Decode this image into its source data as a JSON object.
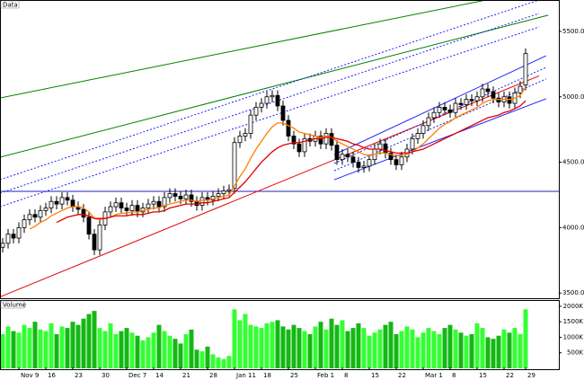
{
  "chart_data": {
    "type": "candlestick",
    "panel_label": "Data",
    "volume_label": "Volume",
    "categories": [
      null,
      null,
      null,
      "Nov 9",
      null,
      null,
      null,
      null,
      "16",
      null,
      null,
      null,
      null,
      "23",
      null,
      null,
      null,
      null,
      "30",
      null,
      null,
      null,
      null,
      "Dec 7",
      null,
      null,
      null,
      null,
      "14",
      null,
      null,
      null,
      null,
      "21",
      null,
      null,
      null,
      null,
      "28",
      null,
      null,
      null,
      null,
      "Jan 11",
      null,
      null,
      null,
      null,
      "18",
      null,
      null,
      null,
      null,
      "25",
      null,
      null,
      null,
      null,
      "Feb 1",
      null,
      null,
      null,
      null,
      "8",
      null,
      null,
      null,
      null,
      "15",
      null,
      null,
      null,
      null,
      "22",
      null,
      null,
      null,
      null,
      "Mar 1",
      null,
      null,
      null,
      null,
      "8",
      null,
      null,
      null,
      null,
      "15",
      null,
      null,
      null,
      null,
      "22",
      null,
      null,
      null,
      "29"
    ],
    "open": [
      3850,
      3880,
      3950,
      3920,
      4000,
      4060,
      4100,
      4080,
      4130,
      4150,
      4200,
      4180,
      4230,
      4210,
      4160,
      4140,
      4080,
      3950,
      3830,
      4020,
      4120,
      4160,
      4190,
      4150,
      4130,
      4170,
      4120,
      4150,
      4180,
      4200,
      4160,
      4230,
      4260,
      4240,
      4220,
      4250,
      4200,
      4170,
      4230,
      4210,
      4240,
      4260,
      4280,
      4300,
      4650,
      4700,
      4720,
      4860,
      4920,
      4950,
      5000,
      5010,
      4930,
      4820,
      4700,
      4640,
      4580,
      4680,
      4660,
      4700,
      4640,
      4720,
      4630,
      4520,
      4560,
      4540,
      4500,
      4460,
      4470,
      4520,
      4600,
      4640,
      4570,
      4520,
      4480,
      4540,
      4600,
      4680,
      4720,
      4780,
      4840,
      4880,
      4920,
      4900,
      4880,
      4950,
      4940,
      4980,
      4970,
      5000,
      5060,
      5040,
      4990,
      4960,
      5000,
      4950,
      5030,
      5090
    ],
    "high": [
      3920,
      3990,
      3990,
      4040,
      4100,
      4140,
      4140,
      4170,
      4190,
      4240,
      4240,
      4270,
      4270,
      4250,
      4200,
      4180,
      4120,
      3990,
      4060,
      4160,
      4200,
      4230,
      4230,
      4190,
      4210,
      4210,
      4190,
      4220,
      4240,
      4240,
      4270,
      4300,
      4300,
      4280,
      4290,
      4290,
      4240,
      4270,
      4270,
      4280,
      4300,
      4320,
      4330,
      4690,
      4740,
      4760,
      4900,
      4960,
      4990,
      5040,
      5050,
      5050,
      4970,
      4860,
      4740,
      4680,
      4720,
      4720,
      4740,
      4740,
      4760,
      4760,
      4670,
      4600,
      4600,
      4580,
      4540,
      4510,
      4560,
      4640,
      4680,
      4680,
      4610,
      4560,
      4580,
      4640,
      4720,
      4760,
      4820,
      4880,
      4920,
      4960,
      4960,
      4940,
      4990,
      4990,
      5020,
      5020,
      5040,
      5100,
      5100,
      5080,
      5030,
      5040,
      5040,
      5070,
      5120,
      5370
    ],
    "low": [
      3810,
      3840,
      3880,
      3880,
      3960,
      4020,
      4040,
      4040,
      4090,
      4110,
      4140,
      4140,
      4170,
      4120,
      4100,
      4040,
      3910,
      3790,
      3790,
      3980,
      4080,
      4120,
      4110,
      4090,
      4090,
      4080,
      4080,
      4110,
      4140,
      4120,
      4120,
      4190,
      4200,
      4180,
      4180,
      4160,
      4130,
      4130,
      4170,
      4170,
      4200,
      4220,
      4240,
      4260,
      4610,
      4660,
      4680,
      4820,
      4880,
      4910,
      4960,
      4890,
      4780,
      4660,
      4600,
      4540,
      4540,
      4620,
      4620,
      4600,
      4600,
      4590,
      4480,
      4480,
      4500,
      4460,
      4420,
      4420,
      4430,
      4480,
      4560,
      4530,
      4480,
      4440,
      4440,
      4500,
      4560,
      4640,
      4680,
      4740,
      4800,
      4840,
      4860,
      4840,
      4840,
      4900,
      4900,
      4930,
      4930,
      4960,
      5000,
      4950,
      4920,
      4920,
      4910,
      4910,
      4990,
      5050
    ],
    "close": [
      3880,
      3950,
      3920,
      4000,
      4060,
      4100,
      4080,
      4130,
      4150,
      4200,
      4180,
      4230,
      4210,
      4160,
      4140,
      4080,
      3950,
      3830,
      4020,
      4120,
      4160,
      4190,
      4150,
      4130,
      4170,
      4120,
      4150,
      4180,
      4200,
      4160,
      4230,
      4260,
      4240,
      4220,
      4250,
      4200,
      4170,
      4230,
      4210,
      4240,
      4260,
      4280,
      4290,
      4650,
      4700,
      4720,
      4860,
      4920,
      4950,
      5000,
      5010,
      4930,
      4820,
      4700,
      4640,
      4580,
      4680,
      4660,
      4700,
      4640,
      4720,
      4630,
      4520,
      4560,
      4540,
      4500,
      4460,
      4470,
      4520,
      4600,
      4640,
      4570,
      4520,
      4480,
      4540,
      4600,
      4680,
      4720,
      4780,
      4840,
      4880,
      4920,
      4900,
      4880,
      4950,
      4940,
      4980,
      4970,
      5000,
      5060,
      5040,
      4990,
      4960,
      5000,
      4950,
      5030,
      5080,
      5330
    ],
    "up_color": "#ffffff",
    "down_color": "#000000",
    "ylim": [
      3460,
      5740
    ],
    "yticks": [
      {
        "value": 3500,
        "label": "3500.00"
      },
      {
        "value": 4000,
        "label": "4000.00"
      },
      {
        "value": 4500,
        "label": "4500.00"
      },
      {
        "value": 5000,
        "label": "5000.00"
      },
      {
        "value": 5500,
        "label": "5500.00"
      }
    ],
    "lines": [
      {
        "color": "#ff8000",
        "values": [
          null,
          null,
          null,
          null,
          null,
          3990,
          4010,
          4040,
          4060,
          4090,
          4110,
          4130,
          4150,
          4160,
          4160,
          4150,
          4120,
          4070,
          4060,
          4070,
          4080,
          4100,
          4110,
          4110,
          4120,
          4120,
          4130,
          4140,
          4150,
          4150,
          4170,
          4180,
          4190,
          4200,
          4210,
          4210,
          4200,
          4210,
          4210,
          4220,
          4230,
          4240,
          4250,
          4320,
          4390,
          4450,
          4530,
          4600,
          4660,
          4720,
          4770,
          4800,
          4800,
          4780,
          4760,
          4730,
          4720,
          4710,
          4700,
          4690,
          4700,
          4690,
          4660,
          4640,
          4620,
          4600,
          4580,
          4560,
          4550,
          4560,
          4570,
          4570,
          4560,
          4550,
          4550,
          4560,
          4580,
          4610,
          4640,
          4680,
          4720,
          4760,
          4790,
          4810,
          4840,
          4860,
          4880,
          4900,
          4920,
          4950,
          4970,
          4980,
          4980,
          4980,
          4980,
          4990,
          5010,
          5070
        ]
      },
      {
        "color": "#e00000",
        "values": [
          null,
          null,
          null,
          null,
          null,
          null,
          null,
          null,
          null,
          null,
          4040,
          4060,
          4080,
          4090,
          4100,
          4100,
          4090,
          4070,
          4070,
          4070,
          4080,
          4090,
          4090,
          4090,
          4100,
          4100,
          4100,
          4110,
          4120,
          4120,
          4130,
          4150,
          4160,
          4170,
          4180,
          4180,
          4180,
          4190,
          4190,
          4200,
          4210,
          4220,
          4230,
          4270,
          4310,
          4350,
          4400,
          4450,
          4500,
          4540,
          4580,
          4610,
          4630,
          4640,
          4650,
          4650,
          4660,
          4670,
          4680,
          4680,
          4690,
          4690,
          4680,
          4670,
          4660,
          4640,
          4630,
          4610,
          4600,
          4600,
          4600,
          4590,
          4580,
          4570,
          4570,
          4570,
          4580,
          4590,
          4600,
          4620,
          4640,
          4660,
          4680,
          4700,
          4720,
          4740,
          4760,
          4780,
          4800,
          4820,
          4840,
          4850,
          4860,
          4880,
          4890,
          4910,
          4930,
          4970
        ]
      }
    ],
    "trendlines": [
      {
        "color": "#e00000",
        "dash": false,
        "x": [
          -0.5,
          99.5
        ],
        "y": [
          3470,
          5160
        ]
      },
      {
        "color": "#008000",
        "dash": false,
        "x": [
          -0.5,
          101.2
        ],
        "y": [
          4538,
          5624
        ]
      },
      {
        "color": "#008000",
        "dash": false,
        "x": [
          -0.5,
          100.5
        ],
        "y": [
          4991,
          5830
        ]
      },
      {
        "color": "#2020ff",
        "dash": true,
        "x": [
          -0.5,
          99.5
        ],
        "y": [
          4366,
          5740
        ]
      },
      {
        "color": "#2020ff",
        "dash": true,
        "x": [
          -0.5,
          99.5
        ],
        "y": [
          4263,
          5637
        ]
      },
      {
        "color": "#2020ff",
        "dash": true,
        "x": [
          -0.5,
          99.5
        ],
        "y": [
          4160,
          5534
        ]
      },
      {
        "color": "#2020ff",
        "dash": false,
        "x": [
          61.5,
          100.8
        ],
        "y": [
          4558,
          5314
        ]
      },
      {
        "color": "#2020ff",
        "dash": false,
        "x": [
          61.5,
          100.8
        ],
        "y": [
          4366,
          4985
        ]
      },
      {
        "color": "#2020ff",
        "dash": true,
        "x": [
          61.5,
          100.8
        ],
        "y": [
          4490,
          5225
        ]
      },
      {
        "color": "#2020ff",
        "dash": true,
        "x": [
          61.5,
          100.8
        ],
        "y": [
          4435,
          5136
        ]
      }
    ],
    "hlines": [
      {
        "color": "#2020c0",
        "value": 4277
      }
    ],
    "volume": {
      "values": [
        1100,
        1350,
        1200,
        1150,
        1400,
        1300,
        1500,
        1250,
        1200,
        1450,
        1100,
        1350,
        1300,
        1500,
        1400,
        1600,
        1750,
        1850,
        1300,
        1200,
        1450,
        1100,
        1200,
        1300,
        1150,
        1050,
        900,
        1000,
        1150,
        1400,
        1200,
        1050,
        950,
        800,
        1100,
        1250,
        600,
        550,
        700,
        450,
        350,
        300,
        400,
        1900,
        1550,
        1750,
        1400,
        1350,
        1300,
        1450,
        1500,
        1550,
        1350,
        1250,
        1400,
        1300,
        1200,
        1100,
        1350,
        1500,
        1250,
        1600,
        1400,
        1550,
        1200,
        1300,
        1450,
        1300,
        1050,
        1150,
        1250,
        1400,
        1500,
        1100,
        1200,
        1350,
        1250,
        1000,
        1150,
        1300,
        1200,
        1100,
        1300,
        1400,
        1250,
        1150,
        1050,
        1100,
        1450,
        1300,
        1000,
        950,
        1050,
        1250,
        1150,
        1300,
        1100,
        1900
      ],
      "up_color": "#33ff33",
      "down_color": "#14b814",
      "ylim": [
        0,
        2200
      ],
      "yticks": [
        {
          "value": 500,
          "label": "500K"
        },
        {
          "value": 1000,
          "label": "1000K"
        },
        {
          "value": 1500,
          "label": "1500K"
        },
        {
          "value": 2000,
          "label": "2000K"
        }
      ]
    }
  }
}
